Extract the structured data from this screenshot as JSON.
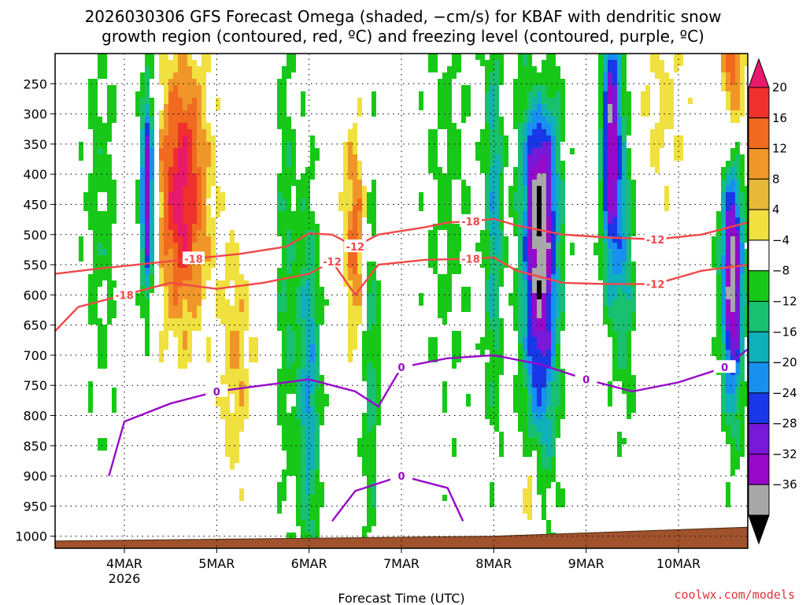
{
  "chart_data": {
    "type": "heatmap",
    "title_lines": [
      "2026030306 GFS Forecast Omega (shaded, −cm/s) for KBAF with dendritic snow",
      "growth region (contoured, red, ºC) and freezing level (contoured, purple, ºC)"
    ],
    "xlabel": "Forecast Time (UTC)",
    "ylabel": "",
    "credit": "coolwx.com/models",
    "x_range": [
      "2026-03-03T06",
      "2026-03-10T18"
    ],
    "x_ticks": [
      {
        "label": "4MAR",
        "sublabel": "2026",
        "t": "2026-03-04T00"
      },
      {
        "label": "5MAR",
        "sublabel": "",
        "t": "2026-03-05T00"
      },
      {
        "label": "6MAR",
        "sublabel": "",
        "t": "2026-03-06T00"
      },
      {
        "label": "7MAR",
        "sublabel": "",
        "t": "2026-03-07T00"
      },
      {
        "label": "8MAR",
        "sublabel": "",
        "t": "2026-03-08T00"
      },
      {
        "label": "9MAR",
        "sublabel": "",
        "t": "2026-03-09T00"
      },
      {
        "label": "10MAR",
        "sublabel": "",
        "t": "2026-03-10T00"
      }
    ],
    "y_ticks": [
      "250",
      "300",
      "350",
      "400",
      "450",
      "500",
      "550",
      "600",
      "650",
      "700",
      "750",
      "800",
      "850",
      "900",
      "950",
      "1000"
    ],
    "y_range": [
      200,
      1020
    ],
    "y_scale": "pressure",
    "grid": true,
    "colorbar": {
      "labels": [
        "20",
        "16",
        "12",
        "8",
        "4",
        "−4",
        "−8",
        "−12",
        "−16",
        "−20",
        "−24",
        "−28",
        "−32",
        "−36"
      ],
      "colors": [
        "#e8186c",
        "#f0302c",
        "#f06a20",
        "#f09628",
        "#e8b838",
        "#f0e040",
        "#ffffff",
        "#18c818",
        "#18c070",
        "#10b0b8",
        "#1890f0",
        "#1838e8",
        "#7818d8",
        "#9808c8",
        "#a8a8a8",
        "#000000"
      ]
    },
    "dgz_contours": [
      {
        "label": "-18",
        "points": [
          [
            "2026-03-03T06",
            565
          ],
          [
            "2026-03-03T18",
            556
          ],
          [
            "2026-03-04T06",
            548
          ],
          [
            "2026-03-04T18",
            540
          ],
          [
            "2026-03-05T06",
            532
          ],
          [
            "2026-03-05T18",
            520
          ],
          [
            "2026-03-06T00",
            498
          ],
          [
            "2026-03-06T06",
            500
          ],
          [
            "2026-03-06T12",
            520
          ],
          [
            "2026-03-06T18",
            500
          ],
          [
            "2026-03-07T06",
            488
          ],
          [
            "2026-03-07T12",
            480
          ],
          [
            "2026-03-07T18",
            478
          ],
          [
            "2026-03-08T00",
            474
          ],
          [
            "2026-03-08T06",
            485
          ],
          [
            "2026-03-08T18",
            500
          ],
          [
            "2026-03-09T06",
            505
          ],
          [
            "2026-03-09T18",
            508
          ],
          [
            "2026-03-10T06",
            500
          ],
          [
            "2026-03-10T18",
            480
          ]
        ]
      },
      {
        "label": "-12",
        "points": [
          [
            "2026-03-03T06",
            660
          ],
          [
            "2026-03-03T12",
            620
          ],
          [
            "2026-03-04T00",
            600
          ],
          [
            "2026-03-04T12",
            580
          ],
          [
            "2026-03-05T00",
            590
          ],
          [
            "2026-03-05T12",
            580
          ],
          [
            "2026-03-06T00",
            565
          ],
          [
            "2026-03-06T06",
            545
          ],
          [
            "2026-03-06T12",
            600
          ],
          [
            "2026-03-06T18",
            550
          ],
          [
            "2026-03-07T06",
            542
          ],
          [
            "2026-03-07T18",
            540
          ],
          [
            "2026-03-08T00",
            538
          ],
          [
            "2026-03-08T06",
            560
          ],
          [
            "2026-03-08T18",
            580
          ],
          [
            "2026-03-09T06",
            582
          ],
          [
            "2026-03-09T18",
            582
          ],
          [
            "2026-03-10T06",
            560
          ],
          [
            "2026-03-10T18",
            550
          ]
        ]
      }
    ],
    "dgz_labels": [
      "-18",
      "-12",
      "-18",
      "-12",
      "-18",
      "-12",
      "-18",
      "-12"
    ],
    "freezing_contours": [
      {
        "label": "0",
        "points": [
          [
            "2026-03-03T20",
            900
          ],
          [
            "2026-03-04T00",
            810
          ],
          [
            "2026-03-04T12",
            780
          ],
          [
            "2026-03-05T00",
            760
          ],
          [
            "2026-03-05T12",
            750
          ],
          [
            "2026-03-06T00",
            740
          ],
          [
            "2026-03-06T12",
            760
          ],
          [
            "2026-03-06T18",
            785
          ],
          [
            "2026-03-07T00",
            720
          ],
          [
            "2026-03-07T12",
            705
          ],
          [
            "2026-03-08T00",
            700
          ],
          [
            "2026-03-08T12",
            715
          ],
          [
            "2026-03-09T00",
            740
          ],
          [
            "2026-03-09T12",
            760
          ],
          [
            "2026-03-10T00",
            745
          ],
          [
            "2026-03-10T12",
            720
          ],
          [
            "2026-03-10T18",
            690
          ]
        ]
      },
      {
        "label": "0",
        "points": [
          [
            "2026-03-06T06",
            975
          ],
          [
            "2026-03-06T12",
            925
          ],
          [
            "2026-03-07T00",
            900
          ],
          [
            "2026-03-07T12",
            920
          ],
          [
            "2026-03-07T16",
            975
          ]
        ]
      }
    ],
    "freezing_labels": [
      "0",
      "0",
      "0",
      "0",
      "0"
    ],
    "surface_pressure": [
      [
        "2026-03-03T06",
        1008
      ],
      [
        "2026-03-08T00",
        1000
      ],
      [
        "2026-03-10T18",
        985
      ]
    ]
  }
}
